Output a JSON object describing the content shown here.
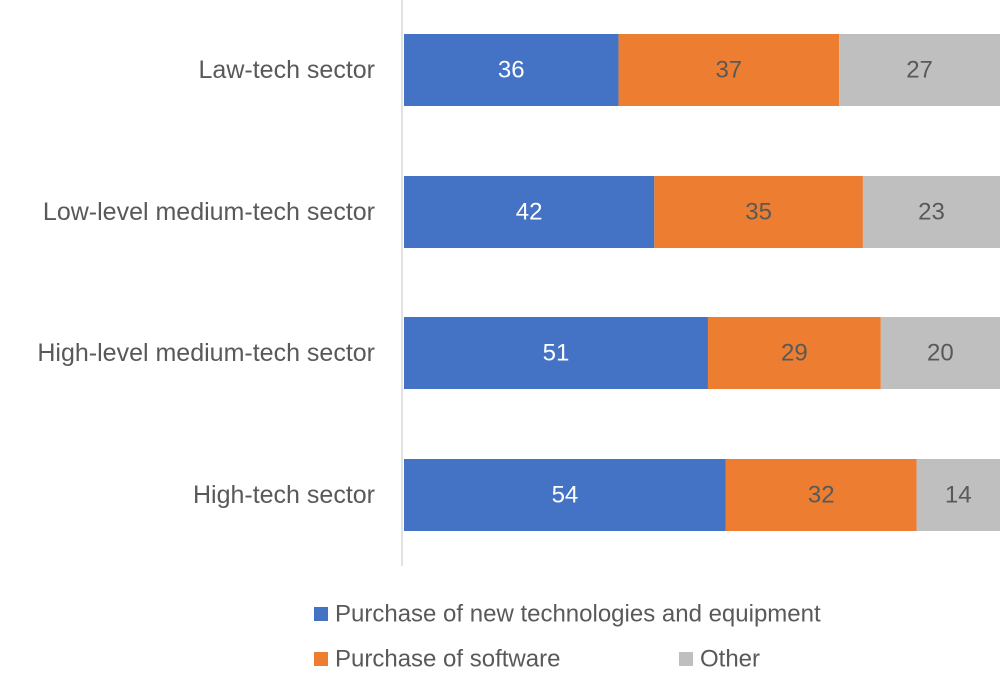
{
  "chart_data": {
    "type": "bar",
    "orientation": "horizontal",
    "stacked": "percent",
    "categories": [
      "Law-tech sector",
      "Low-level medium-tech sector",
      "High-level medium-tech sector",
      "High-tech sector"
    ],
    "series": [
      {
        "name": "Purchase of new technologies and equipment",
        "color": "#4472C4",
        "label_color": "#ffffff",
        "values": [
          36,
          42,
          51,
          54
        ]
      },
      {
        "name": "Purchase of software",
        "color": "#ED7D31",
        "label_color": "#595959",
        "values": [
          37,
          35,
          29,
          32
        ]
      },
      {
        "name": "Other",
        "color": "#BFBFBF",
        "label_color": "#595959",
        "values": [
          27,
          23,
          20,
          14
        ]
      }
    ],
    "xlim": [
      0,
      100
    ],
    "grid": false,
    "data_labels": true,
    "legend_position": "bottom"
  }
}
